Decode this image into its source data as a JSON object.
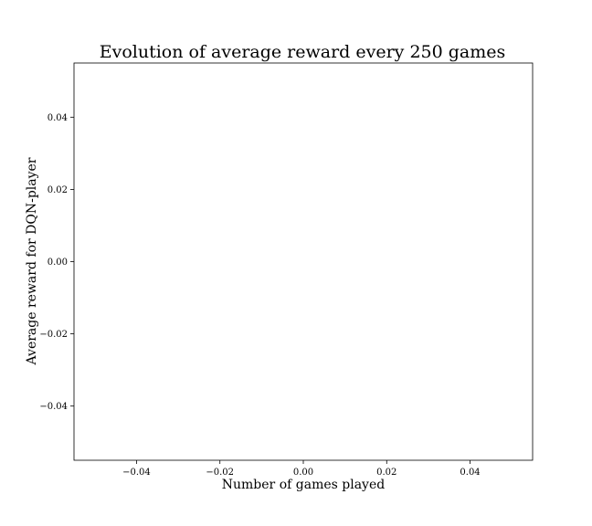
{
  "chart_data": {
    "type": "line",
    "title": "Evolution of average reward every 250 games",
    "xlabel": "Number of games played",
    "ylabel": "Average reward for DQN-player",
    "xlim": [
      -0.055,
      0.055
    ],
    "ylim": [
      -0.055,
      0.055
    ],
    "x_ticks": [
      -0.04,
      -0.02,
      0.0,
      0.02,
      0.04
    ],
    "x_tick_labels": [
      "−0.04",
      "−0.02",
      "0.00",
      "0.02",
      "0.04"
    ],
    "y_ticks": [
      -0.04,
      -0.02,
      0.0,
      0.02,
      0.04
    ],
    "y_tick_labels": [
      "−0.04",
      "−0.02",
      "0.00",
      "0.02",
      "0.04"
    ],
    "series": [],
    "grid": false,
    "colors": {
      "background": "#ffffff",
      "axes": "#000000",
      "text": "#000000"
    }
  }
}
